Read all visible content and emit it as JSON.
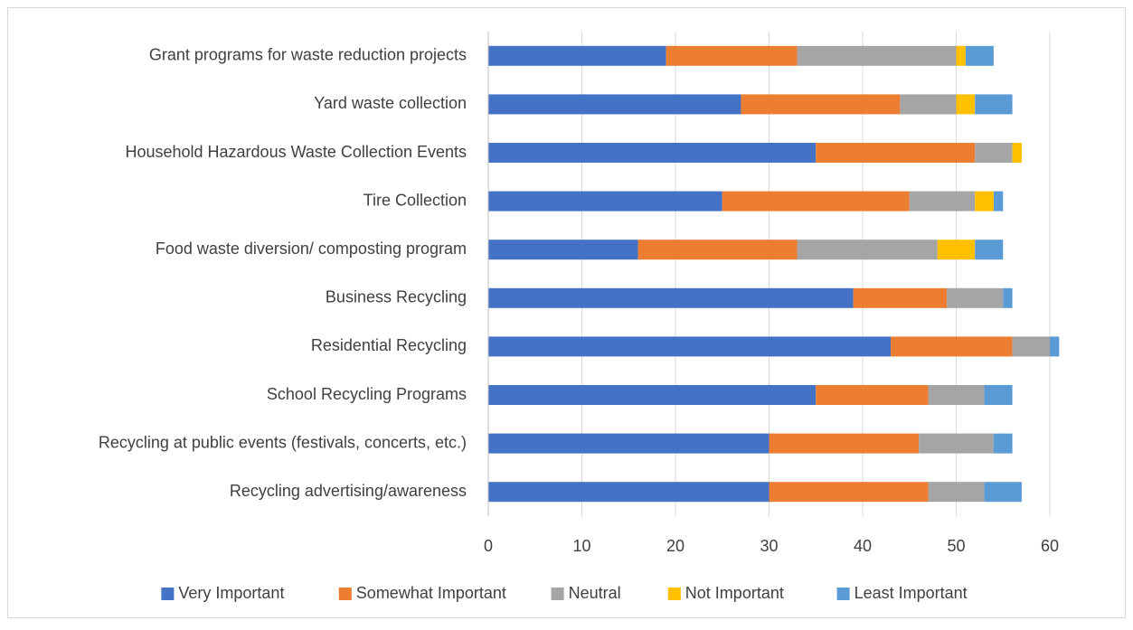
{
  "chart_data": {
    "type": "bar",
    "orientation": "horizontal",
    "stacked": true,
    "categories": [
      "Grant programs for waste reduction projects",
      "Yard waste collection",
      "Household Hazardous Waste Collection Events",
      "Tire Collection",
      "Food waste diversion/ composting program",
      "Business Recycling",
      "Residential Recycling",
      "School Recycling Programs",
      "Recycling at public events (festivals, concerts, etc.)",
      "Recycling advertising/awareness"
    ],
    "series": [
      {
        "name": "Very Important",
        "color": "#4472c4",
        "values": [
          19,
          27,
          35,
          25,
          16,
          39,
          43,
          35,
          30,
          30
        ]
      },
      {
        "name": "Somewhat Important",
        "color": "#ed7d31",
        "values": [
          14,
          17,
          17,
          20,
          17,
          10,
          13,
          12,
          16,
          17
        ]
      },
      {
        "name": "Neutral",
        "color": "#a5a5a5",
        "values": [
          17,
          6,
          4,
          7,
          15,
          6,
          4,
          6,
          8,
          6
        ]
      },
      {
        "name": "Not Important",
        "color": "#ffc000",
        "values": [
          1,
          2,
          1,
          2,
          4,
          0,
          0,
          0,
          0,
          0
        ]
      },
      {
        "name": "Least Important",
        "color": "#5b9bd5",
        "values": [
          3,
          4,
          0,
          1,
          3,
          1,
          1,
          3,
          2,
          4
        ]
      }
    ],
    "xlim": [
      0,
      60
    ],
    "xticks": [
      0,
      10,
      20,
      30,
      40,
      50,
      60
    ],
    "grid": true,
    "legend": "bottom"
  }
}
